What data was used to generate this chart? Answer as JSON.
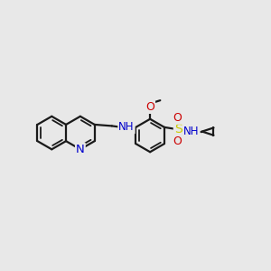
{
  "bg_color": "#e8e8e8",
  "bond_color": "#1a1a1a",
  "bond_width": 1.6,
  "nitrogen_color": "#0000cc",
  "oxygen_color": "#cc0000",
  "sulfur_color": "#cccc00",
  "figsize": [
    3.0,
    3.0
  ],
  "dpi": 100,
  "xlim": [
    0,
    10
  ],
  "ylim": [
    0,
    10
  ]
}
